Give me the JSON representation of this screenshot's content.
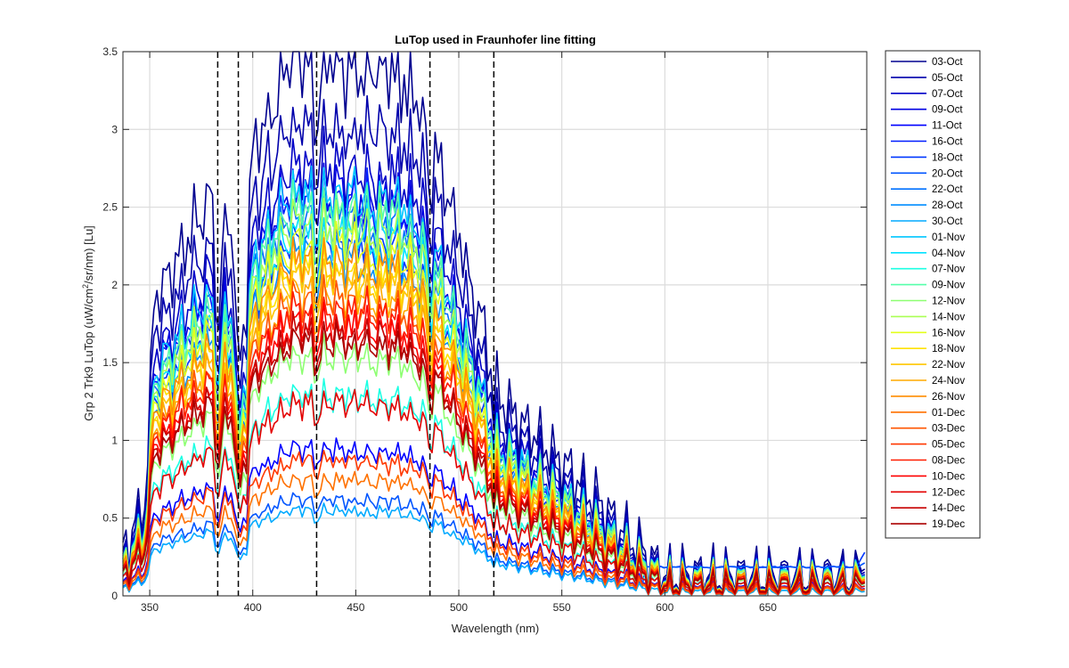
{
  "chart_data": {
    "type": "line",
    "title": "LuTop used in Fraunhofer line fitting",
    "xlabel": "Wavelength (nm)",
    "ylabel_parts": {
      "before": "Grp 2 Trk9 LuTop (uW/cm",
      "sup": "2",
      "after": "/sr/nm) [Lu]"
    },
    "xlim": [
      337,
      698
    ],
    "ylim": [
      0,
      3.5
    ],
    "xticks": [
      350,
      400,
      450,
      500,
      550,
      600,
      650
    ],
    "xtick_labels": [
      "350",
      "400",
      "450",
      "500",
      "550",
      "600",
      "650"
    ],
    "yticks": [
      0,
      0.5,
      1,
      1.5,
      2,
      2.5,
      3,
      3.5
    ],
    "ytick_labels": [
      "0",
      "0.5",
      "1",
      "1.5",
      "2",
      "2.5",
      "3",
      "3.5"
    ],
    "grid": true,
    "legend_position": "outside-right",
    "vlines": [
      383,
      393,
      431,
      486,
      517
    ],
    "vline_style": "dashed-black",
    "colormap": "jet",
    "series": [
      {
        "name": "03-Oct",
        "color": "#00008f",
        "peak": 3.45
      },
      {
        "name": "05-Oct",
        "color": "#0000ab",
        "peak": 3.05
      },
      {
        "name": "07-Oct",
        "color": "#0000c7",
        "peak": 2.78
      },
      {
        "name": "09-Oct",
        "color": "#0000e3",
        "peak": 2.62
      },
      {
        "name": "11-Oct",
        "color": "#0000ff",
        "peak": 0.95
      },
      {
        "name": "16-Oct",
        "color": "#001cff",
        "peak": 2.55
      },
      {
        "name": "18-Oct",
        "color": "#0038ff",
        "peak": 2.3
      },
      {
        "name": "20-Oct",
        "color": "#0055ff",
        "peak": 0.62
      },
      {
        "name": "22-Oct",
        "color": "#0071ff",
        "peak": 2.45
      },
      {
        "name": "28-Oct",
        "color": "#008dff",
        "peak": 2.2
      },
      {
        "name": "30-Oct",
        "color": "#00aaff",
        "peak": 0.55
      },
      {
        "name": "01-Nov",
        "color": "#00c6ff",
        "peak": 2.6
      },
      {
        "name": "04-Nov",
        "color": "#00e2ff",
        "peak": 2.35
      },
      {
        "name": "07-Nov",
        "color": "#1cffe3",
        "peak": 1.3
      },
      {
        "name": "09-Nov",
        "color": "#55ffaa",
        "peak": 2.5
      },
      {
        "name": "12-Nov",
        "color": "#8dff71",
        "peak": 1.55
      },
      {
        "name": "14-Nov",
        "color": "#aaff55",
        "peak": 2.4
      },
      {
        "name": "16-Nov",
        "color": "#e3ff1c",
        "peak": 2.25
      },
      {
        "name": "18-Nov",
        "color": "#ffe200",
        "peak": 2.1
      },
      {
        "name": "22-Nov",
        "color": "#ffc600",
        "peak": 2.05
      },
      {
        "name": "24-Nov",
        "color": "#ffaa00",
        "peak": 1.95
      },
      {
        "name": "26-Nov",
        "color": "#ff8d00",
        "peak": 2.15
      },
      {
        "name": "01-Dec",
        "color": "#ff7100",
        "peak": 0.75
      },
      {
        "name": "03-Dec",
        "color": "#ff5500",
        "peak": 1.9
      },
      {
        "name": "05-Dec",
        "color": "#ff3800",
        "peak": 0.88
      },
      {
        "name": "08-Dec",
        "color": "#ff1c00",
        "peak": 1.85
      },
      {
        "name": "10-Dec",
        "color": "#ff0000",
        "peak": 1.75
      },
      {
        "name": "12-Dec",
        "color": "#e30000",
        "peak": 1.25
      },
      {
        "name": "14-Dec",
        "color": "#c70000",
        "peak": 1.7
      },
      {
        "name": "19-Dec",
        "color": "#ab0000",
        "peak": 1.65
      }
    ]
  }
}
